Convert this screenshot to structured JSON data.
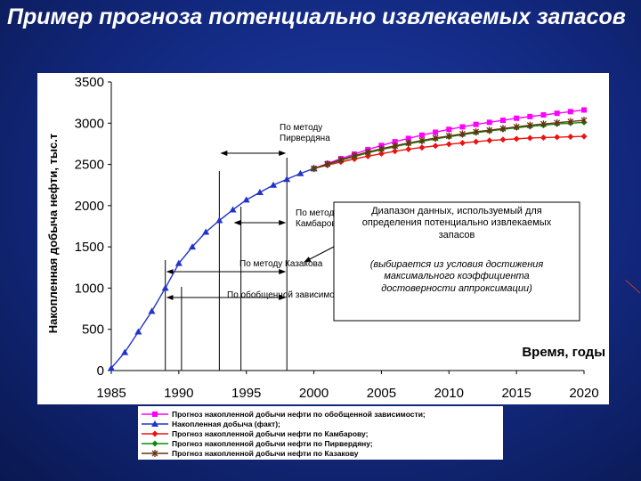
{
  "slide": {
    "title": "Пример прогноза потенциально извлекаемых запасов"
  },
  "chart_data": {
    "type": "line",
    "ylabel": "Накопленная добыча нефти, тыс.т",
    "xlabel": "Время, годы",
    "xlim": [
      1985,
      2020
    ],
    "ylim": [
      0,
      3500
    ],
    "x_ticks": [
      "1985",
      "1990",
      "1995",
      "2000",
      "2005",
      "2010",
      "2015",
      "2020"
    ],
    "y_ticks": [
      "0",
      "500",
      "1000",
      "1500",
      "2000",
      "2500",
      "3000",
      "3500"
    ],
    "grid": false,
    "legend_position": "bottom",
    "series": [
      {
        "name": "Прогноз накопленной добычи нефти по обобщенной зависимости;",
        "color": "#ff00ff",
        "marker": "square",
        "x": [
          2000,
          2001,
          2002,
          2003,
          2004,
          2005,
          2006,
          2007,
          2008,
          2009,
          2010,
          2011,
          2012,
          2013,
          2014,
          2015,
          2016,
          2017,
          2018,
          2019,
          2020
        ],
        "y": [
          2450,
          2510,
          2570,
          2625,
          2680,
          2730,
          2775,
          2815,
          2855,
          2890,
          2925,
          2955,
          2985,
          3010,
          3035,
          3060,
          3080,
          3100,
          3120,
          3140,
          3160
        ]
      },
      {
        "name": "Накопленная добыча (факт);",
        "color": "#2233cc",
        "marker": "triangle",
        "x": [
          1985,
          1986,
          1987,
          1988,
          1989,
          1990,
          1991,
          1992,
          1993,
          1994,
          1995,
          1996,
          1997,
          1998,
          1999,
          2000
        ],
        "y": [
          30,
          220,
          470,
          720,
          1000,
          1300,
          1500,
          1680,
          1820,
          1950,
          2070,
          2160,
          2250,
          2320,
          2390,
          2450
        ]
      },
      {
        "name": "Прогноз накопленной добычи нефти по Камбарову;",
        "color": "#ee1111",
        "marker": "diamond",
        "x": [
          2000,
          2001,
          2002,
          2003,
          2004,
          2005,
          2006,
          2007,
          2008,
          2009,
          2010,
          2011,
          2012,
          2013,
          2014,
          2015,
          2016,
          2017,
          2018,
          2019,
          2020
        ],
        "y": [
          2450,
          2490,
          2530,
          2565,
          2600,
          2630,
          2660,
          2685,
          2705,
          2725,
          2745,
          2760,
          2775,
          2790,
          2800,
          2810,
          2820,
          2825,
          2830,
          2835,
          2840
        ]
      },
      {
        "name": "Прогноз накопленной добычи нефти по Пирвердяну;",
        "color": "#118811",
        "marker": "diamond",
        "x": [
          2000,
          2001,
          2002,
          2003,
          2004,
          2005,
          2006,
          2007,
          2008,
          2009,
          2010,
          2011,
          2012,
          2013,
          2014,
          2015,
          2016,
          2017,
          2018,
          2019,
          2020
        ],
        "y": [
          2450,
          2500,
          2550,
          2595,
          2640,
          2680,
          2715,
          2750,
          2780,
          2810,
          2835,
          2860,
          2885,
          2905,
          2925,
          2945,
          2960,
          2975,
          2990,
          3000,
          3010
        ]
      },
      {
        "name": "Прогноз накопленной добычи нефти по Казакову",
        "color": "#663311",
        "marker": "star",
        "x": [
          2000,
          2001,
          2002,
          2003,
          2004,
          2005,
          2006,
          2007,
          2008,
          2009,
          2010,
          2011,
          2012,
          2013,
          2014,
          2015,
          2016,
          2017,
          2018,
          2019,
          2020
        ],
        "y": [
          2450,
          2505,
          2555,
          2605,
          2650,
          2690,
          2725,
          2760,
          2790,
          2820,
          2845,
          2870,
          2895,
          2915,
          2935,
          2955,
          2975,
          2990,
          3005,
          3020,
          3035
        ]
      }
    ],
    "annotations": [
      {
        "text": "По методу Пирвердяна",
        "x_range": [
          1993,
          1998
        ]
      },
      {
        "text": "По методу Камбарова",
        "x_range": [
          1994,
          1998
        ]
      },
      {
        "text": "По методу Казакова",
        "x_range": [
          1989,
          1998
        ]
      },
      {
        "text": "По обобщенной зависимости",
        "x_range": [
          1989,
          1998
        ]
      }
    ],
    "note": {
      "line1": "Диапазон данных, используемый для",
      "line2": "определения потенциально извлекаемых",
      "line3": "запасов",
      "line4": "(выбирается из условия достижения",
      "line5": "максимального коэффициента",
      "line6": "достоверности аппроксимации)"
    }
  }
}
